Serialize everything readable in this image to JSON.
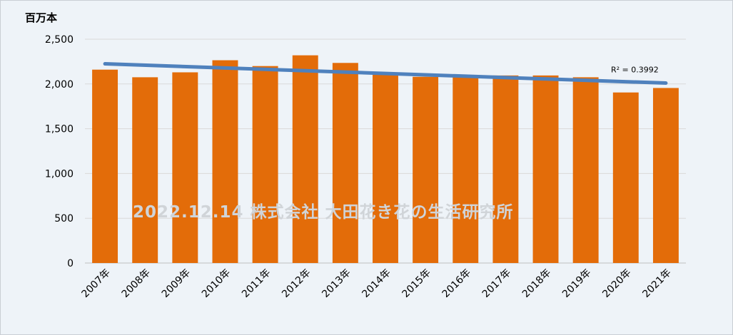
{
  "chart_data": {
    "type": "bar",
    "unit_label": "百万本",
    "categories": [
      "2007年",
      "2008年",
      "2009年",
      "2010年",
      "2011年",
      "2012年",
      "2013年",
      "2014年",
      "2015年",
      "2016年",
      "2017年",
      "2018年",
      "2019年",
      "2020年",
      "2021年"
    ],
    "series": [
      {
        "values": [
          2160,
          2075,
          2130,
          2265,
          2200,
          2320,
          2235,
          2110,
          2080,
          2075,
          2095,
          2095,
          2075,
          1905,
          1955
        ],
        "color": "#e36c09"
      }
    ],
    "trendline": {
      "type": "linear",
      "start": 2225,
      "end": 2010,
      "label": "R² = 0.3992",
      "color": "#4f81bd"
    },
    "ylim": [
      0,
      2500
    ],
    "yticks": [
      0,
      500,
      1000,
      1500,
      2000,
      2500
    ],
    "ytick_labels": [
      "0",
      "500",
      "1,000",
      "1,500",
      "2,000",
      "2,500"
    ],
    "grid": true,
    "watermark": "2022.12.14 株式会社 大田花き花の生活研究所"
  }
}
